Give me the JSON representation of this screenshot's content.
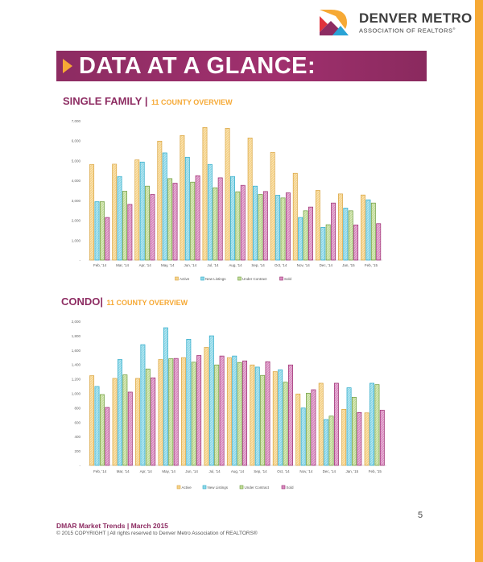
{
  "header": {
    "logo_title": "DENVER METRO",
    "logo_subtitle": "ASSOCIATION OF REALTORS",
    "logo_trademark": "®"
  },
  "banner": {
    "title": "DATA AT A GLANCE:"
  },
  "colors": {
    "brand_purple": "#8d2c62",
    "brand_orange": "#f6a935"
  },
  "sections": {
    "single_family": {
      "title": "SINGLE FAMILY |",
      "subtitle": "11 COUNTY OVERVIEW"
    },
    "condo": {
      "title": "CONDO|",
      "subtitle": "11 COUNTY OVERVIEW"
    }
  },
  "chart_data": [
    {
      "type": "bar",
      "title": "",
      "categories": [
        "Feb, '14",
        "Mar, '14",
        "Apr, '14",
        "May, '14",
        "Jun, '14",
        "Jul, '14",
        "Aug, '14",
        "Sep, '14",
        "Oct, '14",
        "Nov, '14",
        "Dec, '14",
        "Jan, '15",
        "Feb, '15"
      ],
      "ylim": [
        0,
        7000
      ],
      "yticks": [
        "-",
        "1,000",
        "2,000",
        "3,000",
        "4,000",
        "5,000",
        "6,000",
        "7,000"
      ],
      "legend_position": "bottom",
      "grid": false,
      "series": [
        {
          "name": "Active",
          "color": "#f5d38a",
          "values": [
            4805,
            4818,
            5034,
            5976,
            6258,
            6662,
            6622,
            6137,
            5410,
            4361,
            3500,
            3324,
            3270
          ]
        },
        {
          "name": "New Listings",
          "color": "#8fd8e8",
          "values": [
            2934,
            4199,
            4926,
            5384,
            5168,
            4805,
            4199,
            3715,
            3257,
            2140,
            1642,
            2611,
            3028
          ]
        },
        {
          "name": "Under Contract",
          "color": "#c3dc9a",
          "values": [
            2934,
            3459,
            3715,
            4092,
            3916,
            3634,
            3432,
            3297,
            3122,
            2476,
            1776,
            2476,
            2866
          ]
        },
        {
          "name": "Sold",
          "color": "#d98cc0",
          "values": [
            2140,
            2799,
            3297,
            3863,
            4240,
            4132,
            3755,
            3445,
            3378,
            2665,
            2866,
            1763,
            1830
          ]
        }
      ]
    },
    {
      "type": "bar",
      "title": "",
      "categories": [
        "Feb, '14",
        "Mar, '14",
        "Apr, '14",
        "May, '14",
        "Jun, '14",
        "Jul, '14",
        "Aug, '14",
        "Sep, '14",
        "Oct, '14",
        "Nov, '14",
        "Dec, '14",
        "Jan, '15",
        "Feb, '15"
      ],
      "ylim": [
        0,
        2000
      ],
      "yticks": [
        "-",
        "200",
        "400",
        "600",
        "800",
        "1,000",
        "1,200",
        "1,400",
        "1,600",
        "1,800",
        "2,000"
      ],
      "legend_position": "bottom",
      "grid": false,
      "series": [
        {
          "name": "Active",
          "color": "#f5d38a",
          "values": [
            1245,
            1207,
            1207,
            1469,
            1495,
            1637,
            1495,
            1394,
            1301,
            991,
            1140,
            778,
            729
          ]
        },
        {
          "name": "New Listings",
          "color": "#8fd8e8",
          "values": [
            1095,
            1469,
            1675,
            1910,
            1750,
            1798,
            1518,
            1364,
            1327,
            796,
            636,
            1077,
            1140
          ]
        },
        {
          "name": "Under Contract",
          "color": "#c3dc9a",
          "values": [
            983,
            1256,
            1338,
            1480,
            1432,
            1394,
            1428,
            1249,
            1155,
            1002,
            684,
            946,
            1121
          ]
        },
        {
          "name": "Sold",
          "color": "#d98cc0",
          "values": [
            804,
            1017,
            1215,
            1484,
            1525,
            1518,
            1450,
            1439,
            1394,
            1050,
            1140,
            733,
            766
          ]
        }
      ]
    }
  ],
  "footer": {
    "page_number": "5",
    "title": "DMAR Market Trends | March 2015",
    "copyright": "© 2015 COPYRIGHT | All rights reserved to Denver Metro Association of REALTORS®"
  }
}
